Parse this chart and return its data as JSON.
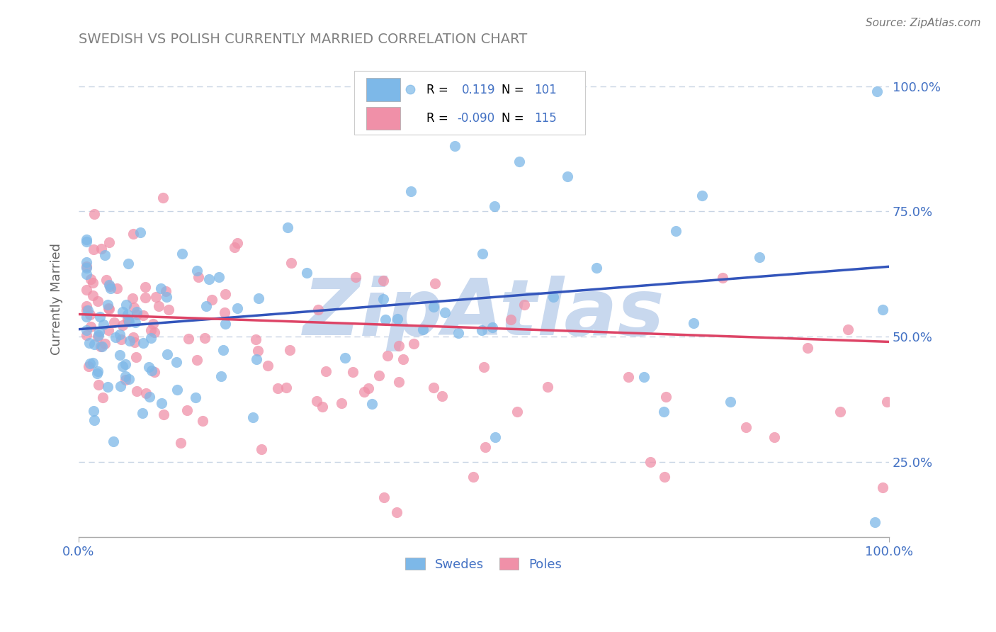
{
  "title": "SWEDISH VS POLISH CURRENTLY MARRIED CORRELATION CHART",
  "source_text": "Source: ZipAtlas.com",
  "ylabel": "Currently Married",
  "xlim": [
    0.0,
    1.0
  ],
  "ylim": [
    0.1,
    1.05
  ],
  "ytick_positions": [
    0.25,
    0.5,
    0.75,
    1.0
  ],
  "right_yticklabels": [
    "25.0%",
    "50.0%",
    "75.0%",
    "100.0%"
  ],
  "swedes_R": 0.119,
  "swedes_N": 101,
  "poles_R": -0.09,
  "poles_N": 115,
  "swedes_color": "#7db8e8",
  "poles_color": "#f090a8",
  "swedes_line_color": "#3355bb",
  "poles_line_color": "#dd4466",
  "legend_text_color": "#4472c4",
  "title_color": "#808080",
  "watermark_text": "ZipAtlas",
  "watermark_color": "#c8d8ee",
  "background_color": "#ffffff",
  "grid_color": "#c8d4e4",
  "sw_line_y0": 0.515,
  "sw_line_y1": 0.64,
  "po_line_y0": 0.545,
  "po_line_y1": 0.49
}
